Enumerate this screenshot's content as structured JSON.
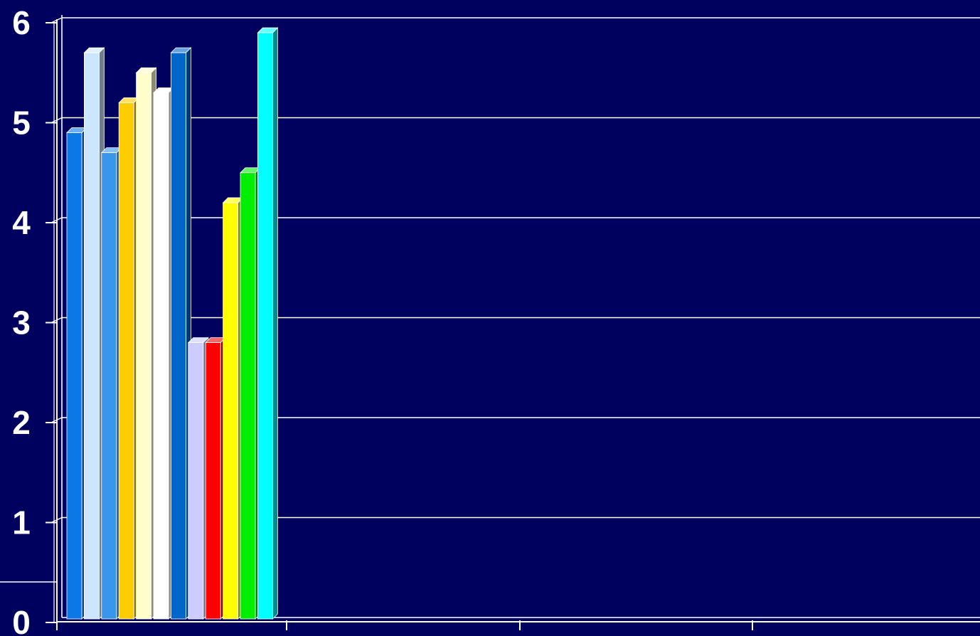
{
  "chart_data": {
    "type": "bar",
    "title": "",
    "xlabel": "",
    "ylabel": "",
    "ylim": [
      0,
      6
    ],
    "yticks": [
      "0",
      "1",
      "2",
      "3",
      "4",
      "5",
      "6"
    ],
    "grid": true,
    "legend": "none",
    "bar_style": "3d",
    "background_color": "#00005e",
    "grid_color": "#ffffff",
    "text_color": "#ffffff",
    "series": [
      {
        "values": [
          4.9
        ],
        "color": "#0a78e6"
      },
      {
        "values": [
          5.7
        ],
        "color": "#cce6ff"
      },
      {
        "values": [
          4.7
        ],
        "color": "#3a96ea"
      },
      {
        "values": [
          5.2
        ],
        "color": "#ffcc00"
      },
      {
        "values": [
          5.5
        ],
        "color": "#ffffcc"
      },
      {
        "values": [
          5.3
        ],
        "color": "#ffffff"
      },
      {
        "values": [
          5.7
        ],
        "color": "#0066cc"
      },
      {
        "values": [
          2.8
        ],
        "color": "#ccccff"
      },
      {
        "values": [
          2.8
        ],
        "color": "#ff0000"
      },
      {
        "values": [
          4.2
        ],
        "color": "#ffff00"
      },
      {
        "values": [
          4.5
        ],
        "color": "#00ee00"
      },
      {
        "values": [
          5.9
        ],
        "color": "#00ffff"
      }
    ]
  }
}
